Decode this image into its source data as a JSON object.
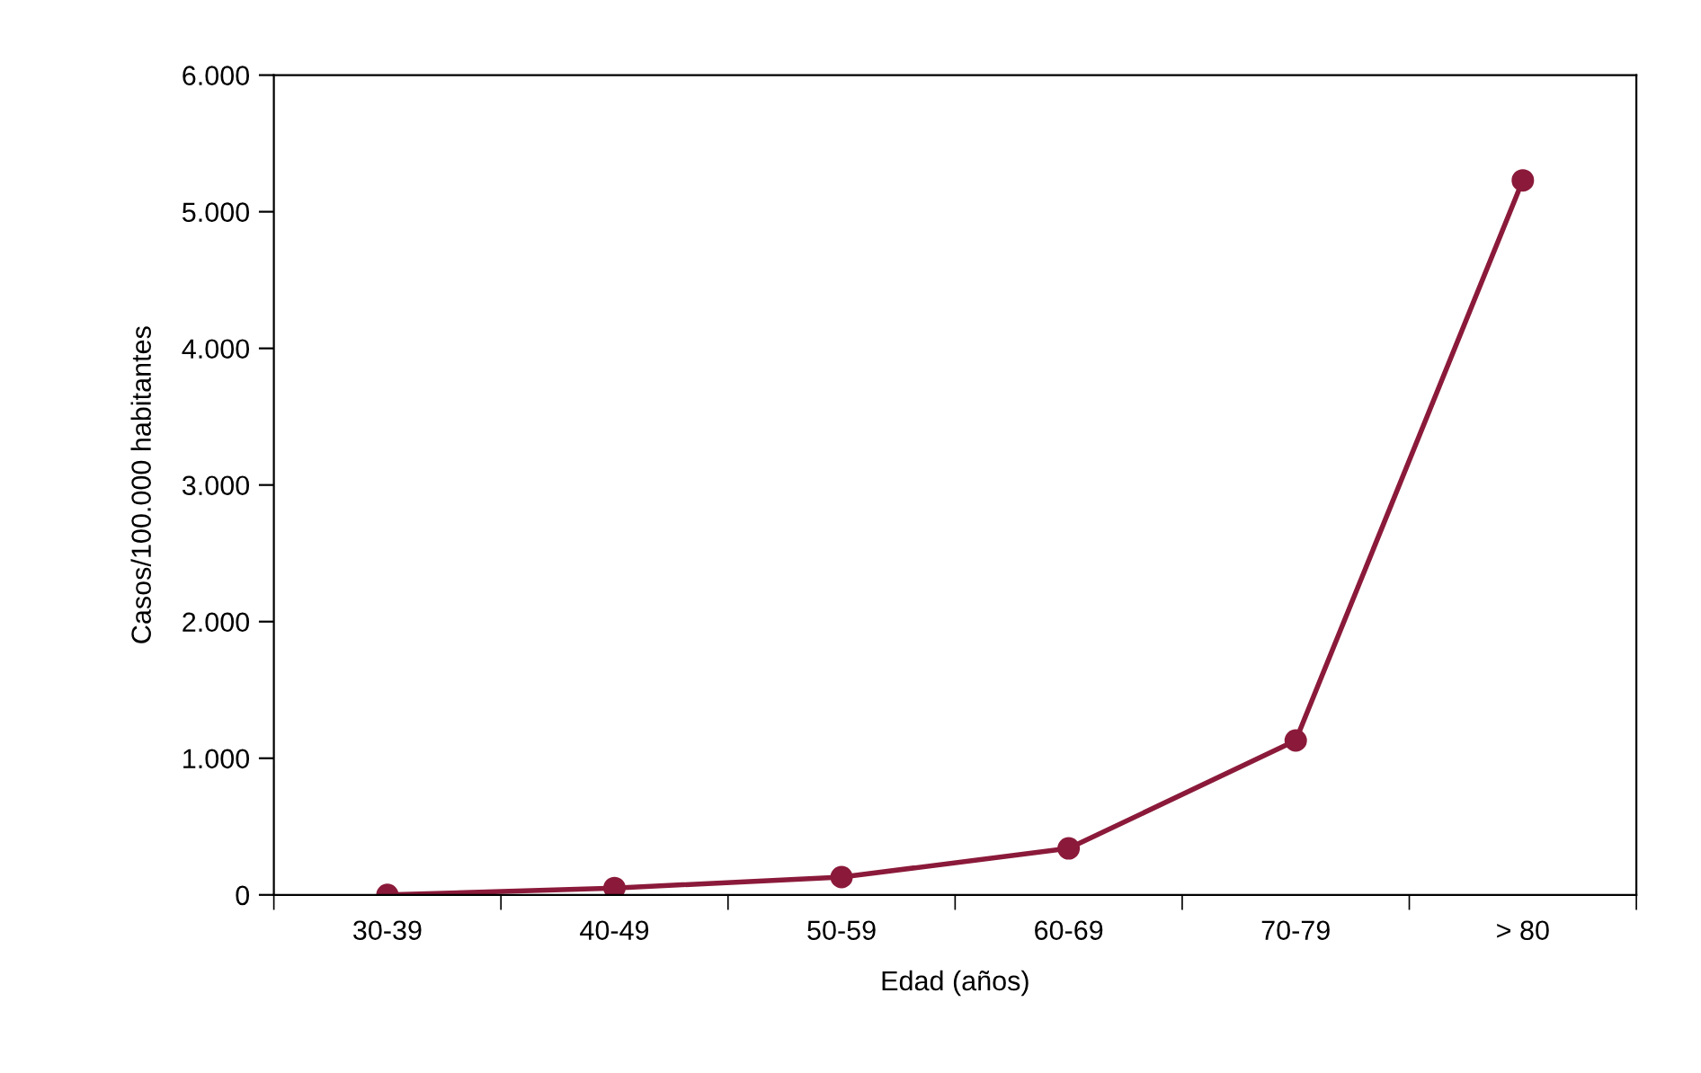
{
  "chart_data": {
    "type": "line",
    "xlabel": "Edad (años)",
    "ylabel": "Casos/100.000 habitantes",
    "categories": [
      "30-39",
      "40-49",
      "50-59",
      "60-69",
      "70-79",
      "> 80"
    ],
    "series": [
      {
        "color": "#8b1a3a",
        "values": [
          0,
          50,
          130,
          340,
          1130,
          5230
        ]
      }
    ],
    "ylim": [
      0,
      6000
    ],
    "yticks": [
      {
        "value": 0,
        "label": "0"
      },
      {
        "value": 1000,
        "label": "1.000"
      },
      {
        "value": 2000,
        "label": "2.000"
      },
      {
        "value": 3000,
        "label": "3.000"
      },
      {
        "value": 4000,
        "label": "4.000"
      },
      {
        "value": 5000,
        "label": "5.000"
      },
      {
        "value": 6000,
        "label": "6.000"
      }
    ],
    "marker": "circle",
    "line_style": "solid",
    "grid": false,
    "legend": false
  }
}
